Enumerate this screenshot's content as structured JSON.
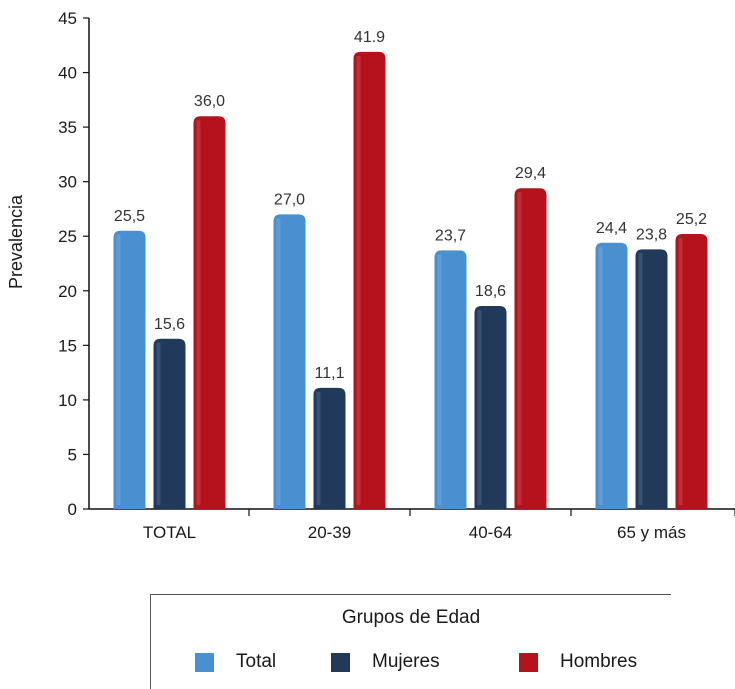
{
  "chart_data": {
    "type": "bar",
    "ylabel": "Prevalencia",
    "ylim": [
      0,
      45
    ],
    "yticks": [
      0,
      5,
      10,
      15,
      20,
      25,
      30,
      35,
      40,
      45
    ],
    "categories": [
      "TOTAL",
      "20-39",
      "40-64",
      "65 y más"
    ],
    "series": [
      {
        "name": "Total",
        "color": "#4a8fd0",
        "values": [
          25.5,
          27.0,
          23.7,
          24.4
        ],
        "labels": [
          "25,5",
          "27,0",
          "23,7",
          "24,4"
        ]
      },
      {
        "name": "Mujeres",
        "color": "#213a5c",
        "values": [
          15.6,
          11.1,
          18.6,
          23.8
        ],
        "labels": [
          "15,6",
          "11,1",
          "18,6",
          "23,8"
        ]
      },
      {
        "name": "Hombres",
        "color": "#b5121b",
        "values": [
          36.0,
          41.9,
          29.4,
          25.2
        ],
        "labels": [
          "36,0",
          "41.9",
          "29,4",
          "25,2"
        ]
      }
    ],
    "legend": {
      "title": "Grupos de Edad",
      "position": "bottom"
    }
  }
}
